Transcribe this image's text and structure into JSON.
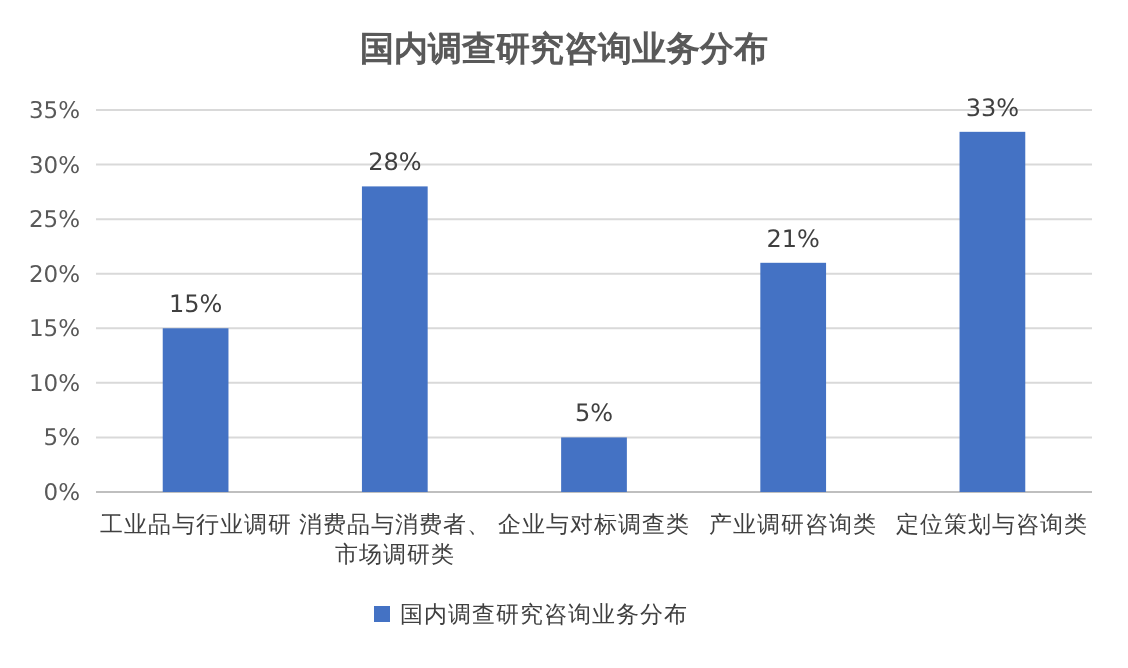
{
  "chart_data": {
    "type": "bar",
    "title": "国内调查研究咨询业务分布",
    "categories": [
      "工业品与行业调研",
      "消费品与消费者、市场调研类",
      "企业与对标调查类",
      "产业调研咨询类",
      "定位策划与咨询类"
    ],
    "series": [
      {
        "name": "国内调查研究咨询业务分布",
        "color": "#4472c4",
        "values": [
          15,
          28,
          5,
          21,
          33
        ],
        "value_labels": [
          "15%",
          "28%",
          "5%",
          "21%",
          "33%"
        ]
      }
    ],
    "ylim": [
      0,
      35
    ],
    "yticks": [
      {
        "value": 0,
        "label": "0%"
      },
      {
        "value": 5,
        "label": "5%"
      },
      {
        "value": 10,
        "label": "10%"
      },
      {
        "value": 15,
        "label": "15%"
      },
      {
        "value": 20,
        "label": "20%"
      },
      {
        "value": 25,
        "label": "25%"
      },
      {
        "value": 30,
        "label": "30%"
      },
      {
        "value": 35,
        "label": "35%"
      }
    ],
    "grid": "y",
    "legend": "bottom"
  }
}
